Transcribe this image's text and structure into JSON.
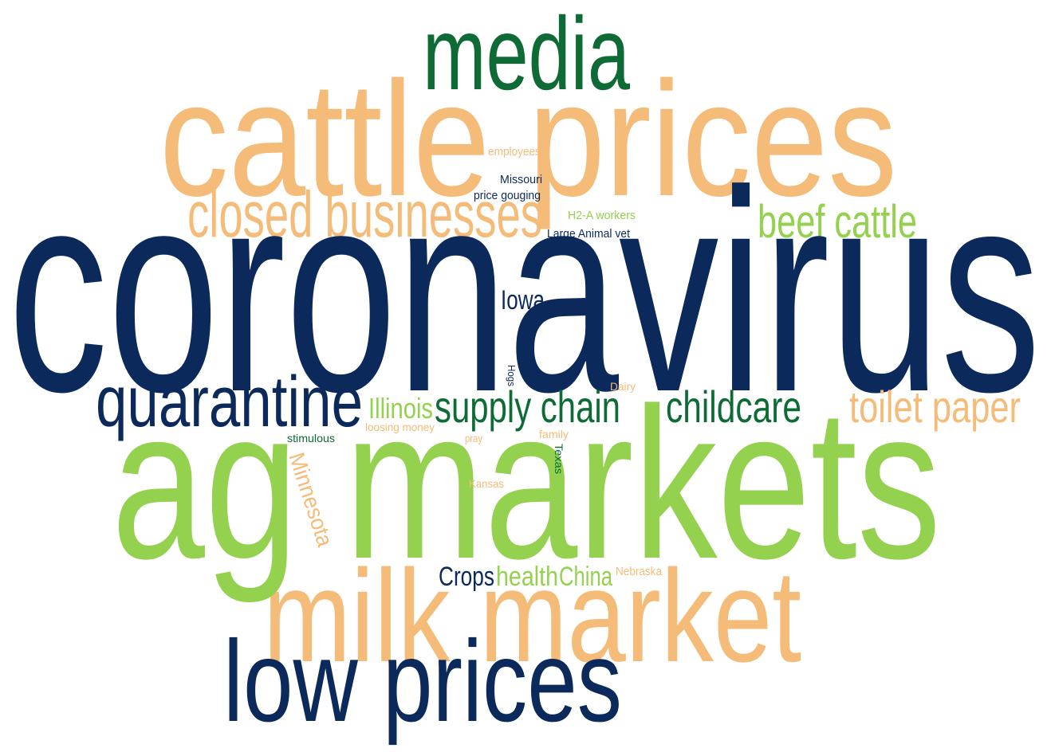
{
  "words": [
    "coronavirus",
    "ag markets",
    "cattle prices",
    "media",
    "milk market",
    "low prices",
    "closed businesses",
    "beef cattle",
    "quarantine",
    "supply chain",
    "childcare",
    "toilet paper",
    "Illinois",
    "Iowa",
    "Crops",
    "health",
    "China",
    "Nebraska",
    "Minnesota",
    "employees",
    "Missouri",
    "price gouging",
    "H2-A workers",
    "Large Animal vet",
    "Hogs",
    "Dairy",
    "loosing money",
    "stimulous",
    "pray",
    "family",
    "Texas",
    "Kansas"
  ]
}
